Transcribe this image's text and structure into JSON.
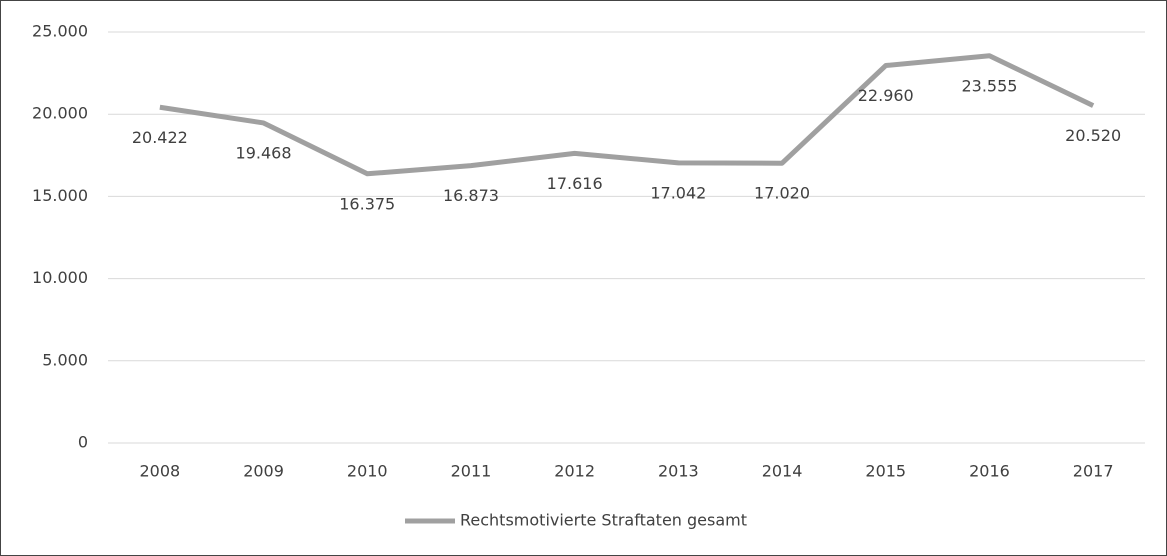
{
  "chart_data": {
    "type": "line",
    "categories": [
      "2008",
      "2009",
      "2010",
      "2011",
      "2012",
      "2013",
      "2014",
      "2015",
      "2016",
      "2017"
    ],
    "series": [
      {
        "name": "Rechtsmotivierte Straftaten gesamt",
        "color": "#a0a0a0",
        "values": [
          20422,
          19468,
          16375,
          16873,
          17616,
          17042,
          17020,
          22960,
          23555,
          20520
        ],
        "value_labels": [
          "20.422",
          "19.468",
          "16.375",
          "16.873",
          "17.616",
          "17.042",
          "17.020",
          "22.960",
          "23.555",
          "20.520"
        ]
      }
    ],
    "ylim": [
      0,
      25000
    ],
    "yticks": [
      0,
      {
        "value": 5000,
        "label": "5.000"
      },
      {
        "value": 10000,
        "label": "10.000"
      },
      {
        "value": 15000,
        "label": "15.000"
      },
      {
        "value": 20000,
        "label": "20.000"
      },
      {
        "value": 25000,
        "label": "25.000"
      }
    ],
    "grid": true,
    "legend": "bottom"
  }
}
